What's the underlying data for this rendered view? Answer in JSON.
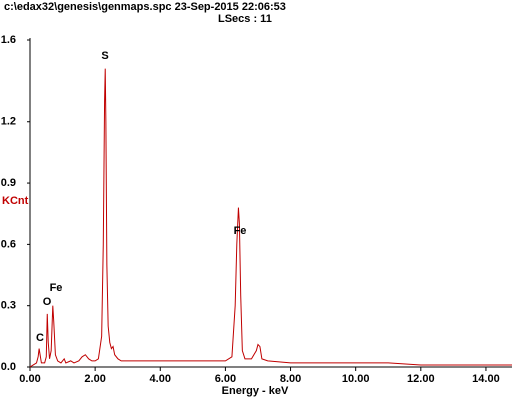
{
  "chart_data": {
    "type": "line",
    "header": "c:\\edax32\\genesis\\genmaps.spc  23-Sep-2015 22:06:53",
    "subheader": "LSecs :  11",
    "x_label": "Energy - keV",
    "y_label": "KCnt",
    "annotations": [
      "S",
      "Fe",
      "Fe",
      "O",
      "C"
    ],
    "xlim": [
      0,
      14.8
    ],
    "ylim": [
      0,
      1.6
    ],
    "xticks": [
      {
        "value": 0,
        "label": "0.00"
      },
      {
        "value": 2,
        "label": "2.00"
      },
      {
        "value": 4,
        "label": "4.00"
      },
      {
        "value": 6,
        "label": "6.00"
      },
      {
        "value": 8,
        "label": "8.00"
      },
      {
        "value": 10,
        "label": "10.00"
      },
      {
        "value": 12,
        "label": "12.00"
      },
      {
        "value": 14,
        "label": "14.00"
      }
    ],
    "yticks": [
      {
        "value": 0,
        "label": "0.0"
      },
      0.3,
      0.6,
      0.9,
      1.2,
      1.6
    ],
    "series": [
      {
        "color": "#c00000",
        "x": [
          0,
          0.1,
          0.2,
          0.25,
          0.28,
          0.31,
          0.35,
          0.45,
          0.5,
          0.53,
          0.56,
          0.6,
          0.65,
          0.7,
          0.73,
          0.78,
          0.85,
          0.95,
          1.05,
          1.1,
          1.25,
          1.35,
          1.5,
          1.6,
          1.7,
          1.8,
          1.9,
          2.0,
          2.1,
          2.2,
          2.25,
          2.29,
          2.31,
          2.33,
          2.36,
          2.4,
          2.45,
          2.5,
          2.55,
          2.6,
          2.7,
          2.8,
          3.0,
          3.5,
          4.0,
          4.5,
          5.0,
          5.5,
          6.0,
          6.2,
          6.3,
          6.35,
          6.4,
          6.43,
          6.47,
          6.52,
          6.6,
          6.8,
          6.95,
          7.0,
          7.06,
          7.12,
          7.3,
          8,
          9,
          10,
          11,
          12,
          13,
          14,
          14.8
        ],
        "values": [
          0,
          0.01,
          0.02,
          0.05,
          0.09,
          0.06,
          0.02,
          0.02,
          0.05,
          0.26,
          0.12,
          0.04,
          0.08,
          0.3,
          0.22,
          0.06,
          0.03,
          0.02,
          0.04,
          0.02,
          0.03,
          0.02,
          0.03,
          0.05,
          0.06,
          0.04,
          0.03,
          0.03,
          0.04,
          0.15,
          0.6,
          1.3,
          1.46,
          1.2,
          0.5,
          0.2,
          0.12,
          0.09,
          0.1,
          0.06,
          0.04,
          0.03,
          0.03,
          0.03,
          0.03,
          0.03,
          0.03,
          0.03,
          0.03,
          0.05,
          0.3,
          0.6,
          0.78,
          0.7,
          0.35,
          0.08,
          0.04,
          0.04,
          0.08,
          0.11,
          0.1,
          0.04,
          0.03,
          0.02,
          0.02,
          0.02,
          0.02,
          0.01,
          0.01,
          0.01,
          0.01
        ]
      }
    ]
  }
}
